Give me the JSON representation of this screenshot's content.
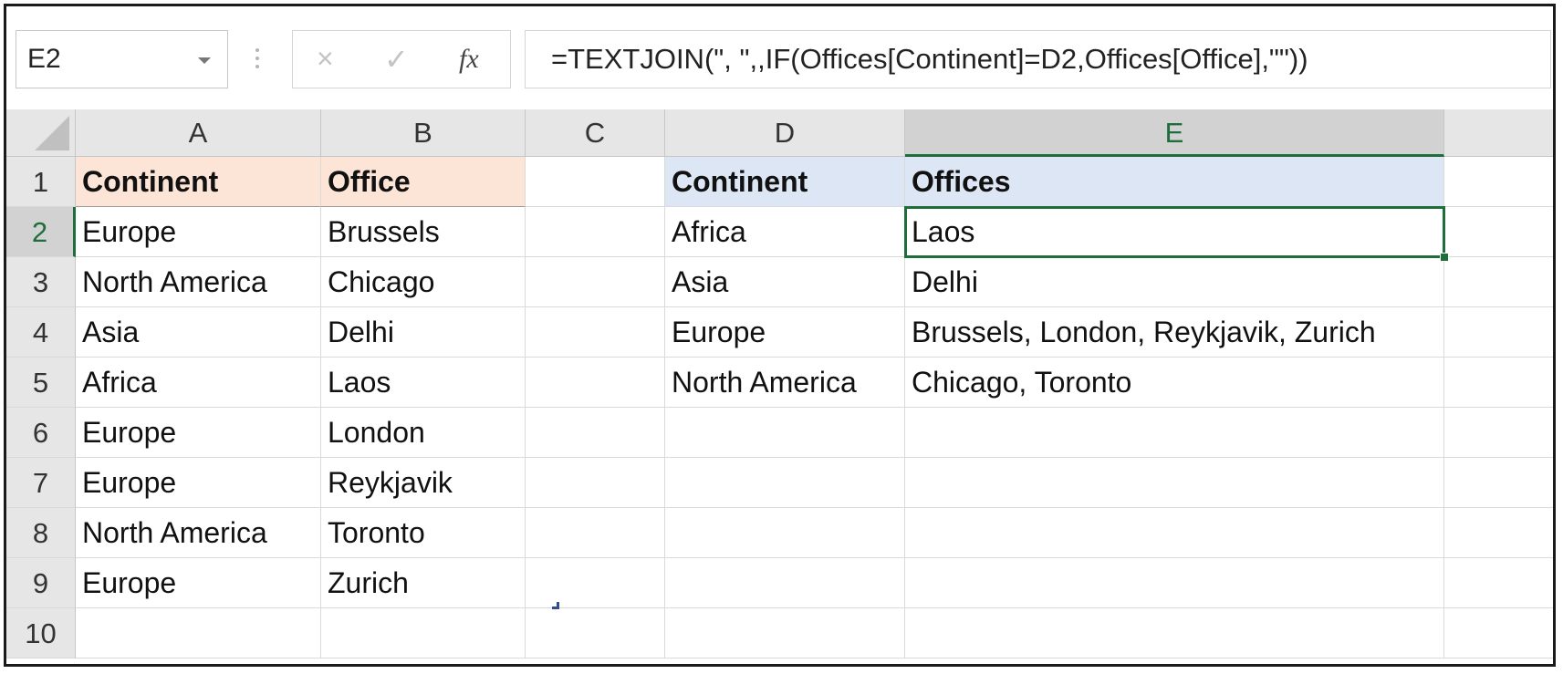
{
  "formula_bar": {
    "name_box": "E2",
    "cancel_icon": "×",
    "enter_icon": "✓",
    "fx_label": "fx",
    "formula": "=TEXTJOIN(\", \",,IF(Offices[Continent]=D2,Offices[Office],\"\"))"
  },
  "columns": [
    "A",
    "B",
    "C",
    "D",
    "E"
  ],
  "rows": [
    "1",
    "2",
    "3",
    "4",
    "5",
    "6",
    "7",
    "8",
    "9",
    "10"
  ],
  "active_cell": "E2",
  "offices_table": {
    "header_color": "#fce4d6",
    "headers": [
      "Continent",
      "Office"
    ],
    "rows": [
      [
        "Europe",
        "Brussels"
      ],
      [
        "North America",
        "Chicago"
      ],
      [
        "Asia",
        "Delhi"
      ],
      [
        "Africa",
        "Laos"
      ],
      [
        "Europe",
        "London"
      ],
      [
        "Europe",
        "Reykjavik"
      ],
      [
        "North America",
        "Toronto"
      ],
      [
        "Europe",
        "Zurich"
      ]
    ]
  },
  "summary_table": {
    "header_color": "#dde6f4",
    "headers": [
      "Continent",
      "Offices"
    ],
    "rows": [
      [
        "Africa",
        "Laos"
      ],
      [
        "Asia",
        "Delhi"
      ],
      [
        "Europe",
        "Brussels, London, Reykjavik, Zurich"
      ],
      [
        "North America",
        "Chicago, Toronto"
      ]
    ]
  },
  "accent_color": "#1e6e3c"
}
